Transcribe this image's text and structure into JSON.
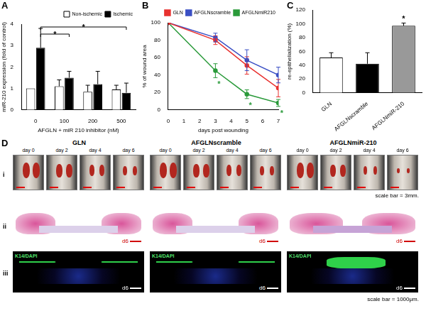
{
  "chart_data": [
    {
      "panel": "A",
      "type": "bar",
      "x_label": "AFGLN + miR 210 inhibitor (nM)",
      "y_label": "miR-210 expression (fold of control)",
      "categories": [
        "0",
        "100",
        "200",
        "500"
      ],
      "series": [
        {
          "name": "Non-ischemic",
          "color": "#ffffff",
          "values": [
            1.0,
            1.1,
            0.85,
            0.95
          ],
          "errors": [
            0,
            0.3,
            0.3,
            0.2
          ]
        },
        {
          "name": "Ischemic",
          "color": "#000000",
          "values": [
            2.9,
            1.5,
            1.2,
            0.8
          ],
          "errors": [
            0.9,
            0.3,
            0.6,
            0.45
          ]
        }
      ],
      "significance": [
        {
          "from": "0",
          "to": "100",
          "label": "*"
        },
        {
          "from": "0",
          "to": "500",
          "label": "*"
        }
      ],
      "ylim": [
        0,
        4
      ],
      "yticks": [
        0,
        1,
        2,
        3,
        4
      ],
      "grid": false,
      "legend": "top-right"
    },
    {
      "panel": "B",
      "type": "line",
      "x_label": "days post wounding",
      "y_label": "% of wound area",
      "x": [
        0,
        3,
        5,
        7
      ],
      "series": [
        {
          "name": "GLN",
          "color": "#e8312f",
          "marker": "circle",
          "values": [
            100,
            80,
            51,
            25
          ],
          "errors": [
            0,
            5,
            10,
            10
          ]
        },
        {
          "name": "AFGLNscramble",
          "color": "#3a4fc4",
          "marker": "circle",
          "values": [
            100,
            83,
            57,
            40
          ],
          "errors": [
            0,
            5,
            12,
            9
          ]
        },
        {
          "name": "AFGLNmiR210",
          "color": "#2a9a3a",
          "marker": "circle",
          "values": [
            100,
            45,
            18,
            8
          ],
          "errors": [
            0,
            8,
            5,
            4
          ]
        }
      ],
      "significance": [
        {
          "series": "AFGLNmiR210",
          "x": 3,
          "label": "*"
        },
        {
          "series": "AFGLNmiR210",
          "x": 5,
          "label": "*"
        },
        {
          "series": "AFGLNmiR210",
          "x": 7,
          "label": "*"
        }
      ],
      "xlim": [
        0,
        7
      ],
      "xticks": [
        0,
        1,
        2,
        3,
        4,
        5,
        6,
        7
      ],
      "ylim": [
        0,
        100
      ],
      "yticks": [
        0,
        20,
        40,
        60,
        80,
        100
      ],
      "grid": false,
      "legend": "top-right"
    },
    {
      "panel": "C",
      "type": "bar",
      "y_label": "re-epithelialization (%)",
      "categories": [
        "GLN",
        "AFGLNscramble",
        "AFGLNmiR-210"
      ],
      "values": [
        51,
        42,
        97
      ],
      "errors": [
        7,
        16,
        4
      ],
      "colors": [
        "#ffffff",
        "#000000",
        "#999999"
      ],
      "significance": [
        {
          "category": "AFGLNmiR-210",
          "label": "*"
        }
      ],
      "ylim": [
        0,
        120
      ],
      "yticks": [
        0,
        20,
        40,
        60,
        80,
        100,
        120
      ],
      "grid": false
    }
  ],
  "panel_d": {
    "panel": "D",
    "columns": [
      "GLN",
      "AFGLNscramble",
      "AFGLNmiR-210"
    ],
    "rows": [
      "i",
      "ii",
      "iii"
    ],
    "days": [
      "day 0",
      "day 2",
      "day 4",
      "day 6"
    ],
    "section_day": "d6",
    "stain": "K14/DAPI",
    "scale_bar_i": "scale bar = 3mm.",
    "scale_bar_iii": "scale bar = 1000μm."
  }
}
